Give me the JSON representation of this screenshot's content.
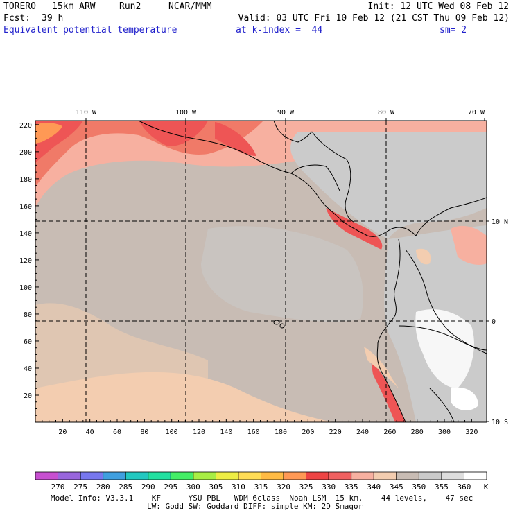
{
  "header": {
    "model": "TORERO",
    "resolution": "15km ARW",
    "run": "Run2",
    "org": "NCAR/MMM",
    "init": "Init: 12 UTC Wed 08 Feb 12",
    "fcst_label": "Fcst:",
    "fcst_value": "39 h",
    "valid": "Valid: 03 UTC Fri 10 Feb 12 (21 CST Thu 09 Feb 12)",
    "field": "Equivalent potential temperature",
    "level": "at k-index =  44",
    "smoothing": "sm= 2"
  },
  "map": {
    "top_lon_labels": [
      "110 W",
      "100 W",
      "90 W",
      "80 W",
      "70 W"
    ],
    "right_lat_labels": [
      "10 N",
      "0",
      "10 S"
    ],
    "x_ticks": [
      "20",
      "40",
      "60",
      "80",
      "100",
      "120",
      "140",
      "160",
      "180",
      "200",
      "220",
      "240",
      "260",
      "280",
      "300",
      "320"
    ],
    "y_ticks": [
      "20",
      "40",
      "60",
      "80",
      "100",
      "120",
      "140",
      "160",
      "180",
      "200",
      "220"
    ]
  },
  "colorbar": {
    "labels": [
      "270",
      "275",
      "280",
      "285",
      "290",
      "295",
      "300",
      "305",
      "310",
      "315",
      "320",
      "325",
      "330",
      "335",
      "340",
      "345",
      "350",
      "355",
      "360"
    ],
    "unit": "K",
    "colors": [
      "#c74fd0",
      "#9966dd",
      "#7777ee",
      "#3f9fdf",
      "#22c8c0",
      "#22e0a0",
      "#44ee66",
      "#a8ee44",
      "#eeee44",
      "#ffdd55",
      "#ffbb44",
      "#ff9955",
      "#ee4444",
      "#f06060",
      "#f7b0a0",
      "#f3cdb0",
      "#c8bcb4",
      "#cbcbcb",
      "#dedede",
      "#ffffff"
    ]
  },
  "footer": {
    "line1": "Model Info: V3.3.1    KF      YSU PBL   WDM 6class  Noah LSM  15 km,    44 levels,    47 sec",
    "line2": "LW: Godd SW: Goddard DIFF: simple KM: 2D Smagor"
  }
}
